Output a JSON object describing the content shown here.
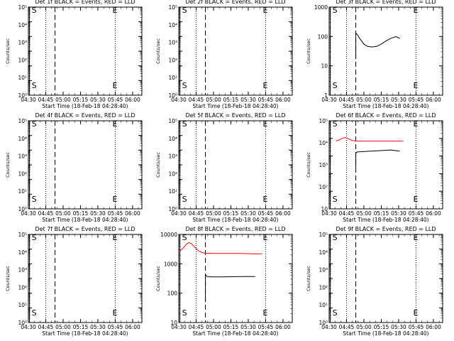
{
  "chart_data": [
    {
      "type": "line",
      "title": "Det 1f BLACK = Events, RED = LLD",
      "xlabel": "Start Time (18-Feb-18 04:28:40)",
      "ylabel": "Counts/sec",
      "yscale": "log",
      "ylim": [
        1,
        1000000
      ],
      "ytick_labels": [
        "10⁰",
        "10¹",
        "10²",
        "10³",
        "10⁴",
        "10⁵"
      ],
      "xlim": [
        "04:30",
        "06:08"
      ],
      "x": [
        "04:30",
        "04:45",
        "05:00",
        "05:15",
        "05:30",
        "05:45",
        "06:00"
      ],
      "vlines": [
        {
          "x": "04:31",
          "style": "solid"
        },
        {
          "x": "04:45",
          "style": "dotted"
        },
        {
          "x": "04:53",
          "style": "dashed"
        },
        {
          "x": "05:45",
          "style": "dotted"
        }
      ],
      "markers": [
        {
          "label": "S",
          "x": "04:31"
        },
        {
          "label": "E",
          "x": "05:45"
        }
      ],
      "series": []
    },
    {
      "type": "line",
      "title": "Det 2f BLACK = Events, RED = LLD",
      "xlabel": "Start Time (18-Feb-18 04:28:40)",
      "ylabel": "Counts/sec",
      "yscale": "log",
      "ylim": [
        1,
        1000000
      ],
      "ytick_labels": [
        "10⁰",
        "10¹",
        "10²",
        "10³",
        "10⁴",
        "10⁵"
      ],
      "xlim": [
        "04:30",
        "06:08"
      ],
      "x": [
        "04:30",
        "04:45",
        "05:00",
        "05:15",
        "05:30",
        "05:45",
        "06:00"
      ],
      "vlines": [
        {
          "x": "04:31",
          "style": "solid"
        },
        {
          "x": "04:45",
          "style": "dotted"
        },
        {
          "x": "04:53",
          "style": "dashed"
        },
        {
          "x": "05:45",
          "style": "dotted"
        }
      ],
      "markers": [
        {
          "label": "S",
          "x": "04:31"
        },
        {
          "label": "E",
          "x": "05:45"
        }
      ],
      "series": []
    },
    {
      "type": "line",
      "title": "Det 3f BLACK = Events, RED = LLD",
      "xlabel": "Start Time (18-Feb-18 04:28:40)",
      "ylabel": "Counts/sec",
      "yscale": "log",
      "ylim": [
        1,
        1000
      ],
      "ytick_labels": [
        "1",
        "10",
        "100",
        "1000"
      ],
      "xlim": [
        "04:30",
        "06:08"
      ],
      "x": [
        "04:30",
        "04:45",
        "05:00",
        "05:15",
        "05:30",
        "05:45",
        "06:00"
      ],
      "vlines": [
        {
          "x": "04:31",
          "style": "solid"
        },
        {
          "x": "04:45",
          "style": "dotted"
        },
        {
          "x": "04:53",
          "style": "dashed"
        },
        {
          "x": "05:45",
          "style": "dotted"
        }
      ],
      "markers": [
        {
          "label": "S",
          "x": "04:31"
        },
        {
          "label": "E",
          "x": "05:45"
        }
      ],
      "series": [
        {
          "color": "#000000",
          "points": [
            [
              0,
              0,
              20
            ],
            [
              0,
              0,
              130
            ],
            [
              1,
              5,
              115
            ],
            [
              3,
              0,
              90
            ],
            [
              5,
              0,
              70
            ],
            [
              7,
              0,
              55
            ],
            [
              10,
              0,
              46
            ],
            [
              14,
              0,
              44
            ],
            [
              18,
              0,
              46
            ],
            [
              22,
              0,
              55
            ],
            [
              26,
              0,
              70
            ],
            [
              30,
              0,
              85
            ],
            [
              33,
              0,
              95
            ],
            [
              35,
              0,
              98
            ],
            [
              37,
              0,
              90
            ],
            [
              38,
              0,
              85
            ]
          ]
        }
      ]
    },
    {
      "type": "line",
      "title": "Det 4f BLACK = Events, RED = LLD",
      "xlabel": "Start Time (18-Feb-18 04:28:40)",
      "ylabel": "Counts/sec",
      "yscale": "log",
      "ylim": [
        1,
        1000000
      ],
      "ytick_labels": [
        "10⁰",
        "10¹",
        "10²",
        "10³",
        "10⁴",
        "10⁵"
      ],
      "xlim": [
        "04:30",
        "06:08"
      ],
      "x": [
        "04:30",
        "04:45",
        "05:00",
        "05:15",
        "05:30",
        "05:45",
        "06:00"
      ],
      "vlines": [
        {
          "x": "04:31",
          "style": "solid"
        },
        {
          "x": "04:45",
          "style": "dotted"
        },
        {
          "x": "04:53",
          "style": "dashed"
        },
        {
          "x": "05:45",
          "style": "dotted"
        }
      ],
      "markers": [
        {
          "label": "S",
          "x": "04:31"
        },
        {
          "label": "E",
          "x": "05:45"
        }
      ],
      "series": []
    },
    {
      "type": "line",
      "title": "Det 5f BLACK = Events, RED = LLD",
      "xlabel": "Start Time (18-Feb-18 04:28:40)",
      "ylabel": "Counts/sec",
      "yscale": "log",
      "ylim": [
        1,
        1000000
      ],
      "ytick_labels": [
        "10⁰",
        "10¹",
        "10²",
        "10³",
        "10⁴",
        "10⁵"
      ],
      "xlim": [
        "04:30",
        "06:08"
      ],
      "x": [
        "04:30",
        "04:45",
        "05:00",
        "05:15",
        "05:30",
        "05:45",
        "06:00"
      ],
      "vlines": [
        {
          "x": "04:31",
          "style": "solid"
        },
        {
          "x": "04:45",
          "style": "dotted"
        },
        {
          "x": "04:53",
          "style": "dashed"
        },
        {
          "x": "05:45",
          "style": "dotted"
        }
      ],
      "markers": [
        {
          "label": "S",
          "x": "04:31"
        },
        {
          "label": "E",
          "x": "05:45"
        }
      ],
      "series": []
    },
    {
      "type": "line",
      "title": "Det 6f BLACK = Events, RED = LLD",
      "xlabel": "Start Time (18-Feb-18 04:28:40)",
      "ylabel": "Counts/sec",
      "yscale": "log",
      "ylim": [
        1,
        100000
      ],
      "ytick_labels": [
        "10",
        "10²",
        "10³",
        "10⁴",
        "10⁵"
      ],
      "xlim": [
        "04:30",
        "06:08"
      ],
      "x": [
        "04:30",
        "04:45",
        "05:00",
        "05:15",
        "05:30",
        "05:45",
        "06:00"
      ],
      "vlines": [
        {
          "x": "04:31",
          "style": "solid"
        },
        {
          "x": "04:45",
          "style": "dotted"
        },
        {
          "x": "04:53",
          "style": "dashed"
        },
        {
          "x": "05:45",
          "style": "dotted"
        }
      ],
      "markers": [
        {
          "label": "S",
          "x": "04:31"
        },
        {
          "label": "E",
          "x": "05:45"
        }
      ],
      "series": [
        {
          "color": "#ff0000",
          "points": [
            [
              -17,
              0,
              7000
            ],
            [
              -14,
              0,
              8500
            ],
            [
              -11,
              0,
              10500
            ],
            [
              -9,
              0,
              11000
            ],
            [
              -7,
              0,
              10000
            ],
            [
              -4,
              0,
              8000
            ],
            [
              -1,
              0,
              7200
            ],
            [
              0,
              0,
              7000
            ],
            [
              10,
              0,
              7000
            ],
            [
              20,
              0,
              7000
            ],
            [
              30,
              0,
              7000
            ],
            [
              41,
              0,
              7000
            ]
          ]
        },
        {
          "color": "#000000",
          "points": [
            [
              0,
              0,
              200
            ],
            [
              0,
              0,
              1500
            ],
            [
              1,
              5,
              1700
            ],
            [
              4,
              0,
              1750
            ],
            [
              10,
              0,
              1850
            ],
            [
              20,
              0,
              2000
            ],
            [
              30,
              0,
              2200
            ],
            [
              35,
              0,
              2000
            ],
            [
              38,
              0,
              1900
            ]
          ]
        }
      ]
    },
    {
      "type": "line",
      "title": "Det 7f BLACK = Events, RED = LLD",
      "xlabel": "Start Time (18-Feb-18 04:28:40)",
      "ylabel": "Counts/sec",
      "yscale": "log",
      "ylim": [
        1,
        1000000
      ],
      "ytick_labels": [
        "10⁰",
        "10¹",
        "10²",
        "10³",
        "10⁴",
        "10⁵"
      ],
      "xlim": [
        "04:30",
        "06:08"
      ],
      "x": [
        "04:30",
        "04:45",
        "05:00",
        "05:15",
        "05:30",
        "05:45",
        "06:00"
      ],
      "vlines": [
        {
          "x": "04:31",
          "style": "solid"
        },
        {
          "x": "04:45",
          "style": "dotted"
        },
        {
          "x": "04:53",
          "style": "dashed"
        },
        {
          "x": "05:45",
          "style": "dotted"
        }
      ],
      "markers": [
        {
          "label": "S",
          "x": "04:31"
        },
        {
          "label": "E",
          "x": "05:45"
        }
      ],
      "series": []
    },
    {
      "type": "line",
      "title": "Det 8f BLACK = Events, RED = LLD",
      "xlabel": "Start Time (18-Feb-18 04:28:40)",
      "ylabel": "Counts/sec",
      "yscale": "log",
      "ylim": [
        10,
        10000
      ],
      "ytick_labels": [
        "10",
        "100",
        "1000",
        "10000"
      ],
      "xlim": [
        "04:30",
        "06:08"
      ],
      "x": [
        "04:30",
        "04:45",
        "05:00",
        "05:15",
        "05:30",
        "05:45",
        "06:00"
      ],
      "vlines": [
        {
          "x": "04:31",
          "style": "solid"
        },
        {
          "x": "04:45",
          "style": "dotted"
        },
        {
          "x": "04:53",
          "style": "dashed"
        },
        {
          "x": "05:45",
          "style": "dotted"
        }
      ],
      "markers": [
        {
          "label": "S",
          "x": "04:31"
        },
        {
          "label": "E",
          "x": "05:45"
        }
      ],
      "series": [
        {
          "color": "#ff0000",
          "points": [
            [
              -22,
              0,
              2700
            ],
            [
              -19,
              0,
              3500
            ],
            [
              -16,
              0,
              4800
            ],
            [
              -14,
              0,
              5300
            ],
            [
              -12,
              0,
              4800
            ],
            [
              -9,
              0,
              3600
            ],
            [
              -6,
              0,
              2800
            ],
            [
              -3,
              0,
              2400
            ],
            [
              0,
              0,
              2300
            ],
            [
              10,
              0,
              2250
            ],
            [
              20,
              0,
              2250
            ],
            [
              30,
              0,
              2250
            ],
            [
              40,
              0,
              2200
            ],
            [
              49,
              0,
              2200
            ]
          ]
        },
        {
          "color": "#000000",
          "points": [
            [
              0,
              0,
              50
            ],
            [
              0,
              0,
              420
            ],
            [
              1,
              5,
              370
            ],
            [
              5,
              0,
              360
            ],
            [
              15,
              0,
              360
            ],
            [
              25,
              0,
              365
            ],
            [
              35,
              0,
              370
            ],
            [
              43,
              0,
              370
            ]
          ]
        }
      ]
    },
    {
      "type": "line",
      "title": "Det 9f BLACK = Events, RED = LLD",
      "xlabel": "Start Time (18-Feb-18 04:28:40)",
      "ylabel": "Counts/sec",
      "yscale": "log",
      "ylim": [
        1,
        1000000
      ],
      "ytick_labels": [
        "10⁰",
        "10¹",
        "10²",
        "10³",
        "10⁴",
        "10⁵"
      ],
      "xlim": [
        "04:30",
        "06:08"
      ],
      "x": [
        "04:30",
        "04:45",
        "05:00",
        "05:15",
        "05:30",
        "05:45",
        "06:00"
      ],
      "vlines": [
        {
          "x": "04:31",
          "style": "solid"
        },
        {
          "x": "04:45",
          "style": "dotted"
        },
        {
          "x": "04:53",
          "style": "dashed"
        },
        {
          "x": "05:45",
          "style": "dotted"
        }
      ],
      "markers": [
        {
          "label": "S",
          "x": "04:31"
        },
        {
          "label": "E",
          "x": "05:45"
        }
      ],
      "series": []
    }
  ]
}
